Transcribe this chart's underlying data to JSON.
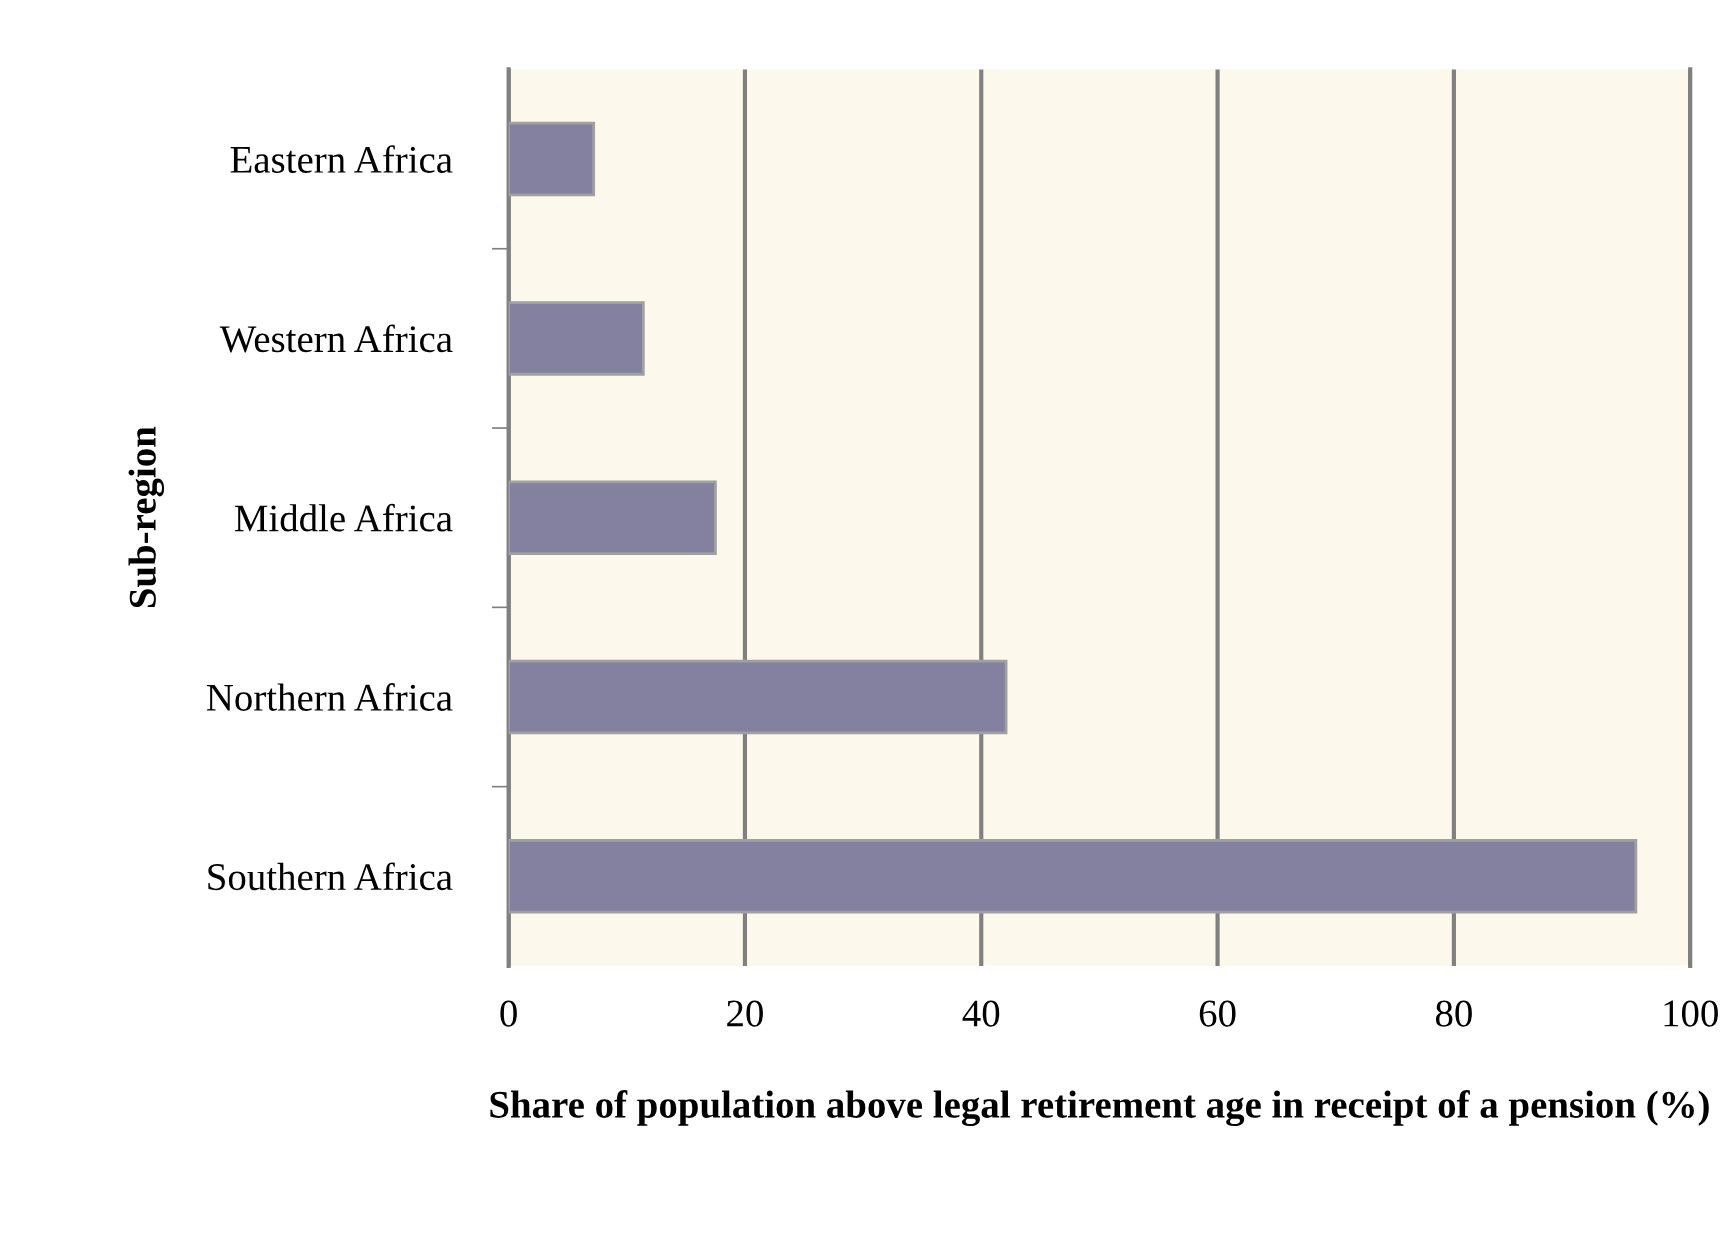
{
  "chart_data": {
    "type": "bar",
    "orientation": "horizontal",
    "categories": [
      "Eastern Africa",
      "Western Africa",
      "Middle Africa",
      "Northern Africa",
      "Southern Africa"
    ],
    "values": [
      7.2,
      11.4,
      17.5,
      42.1,
      95.4
    ],
    "color": "#8380a0",
    "xlim": [
      0,
      100
    ],
    "xticks": [
      0,
      20,
      40,
      60,
      80,
      100
    ],
    "grid": "x",
    "xlabel": "Share of population above legal retirement age in receipt of a pension (%)",
    "ylabel": "Sub-region"
  }
}
